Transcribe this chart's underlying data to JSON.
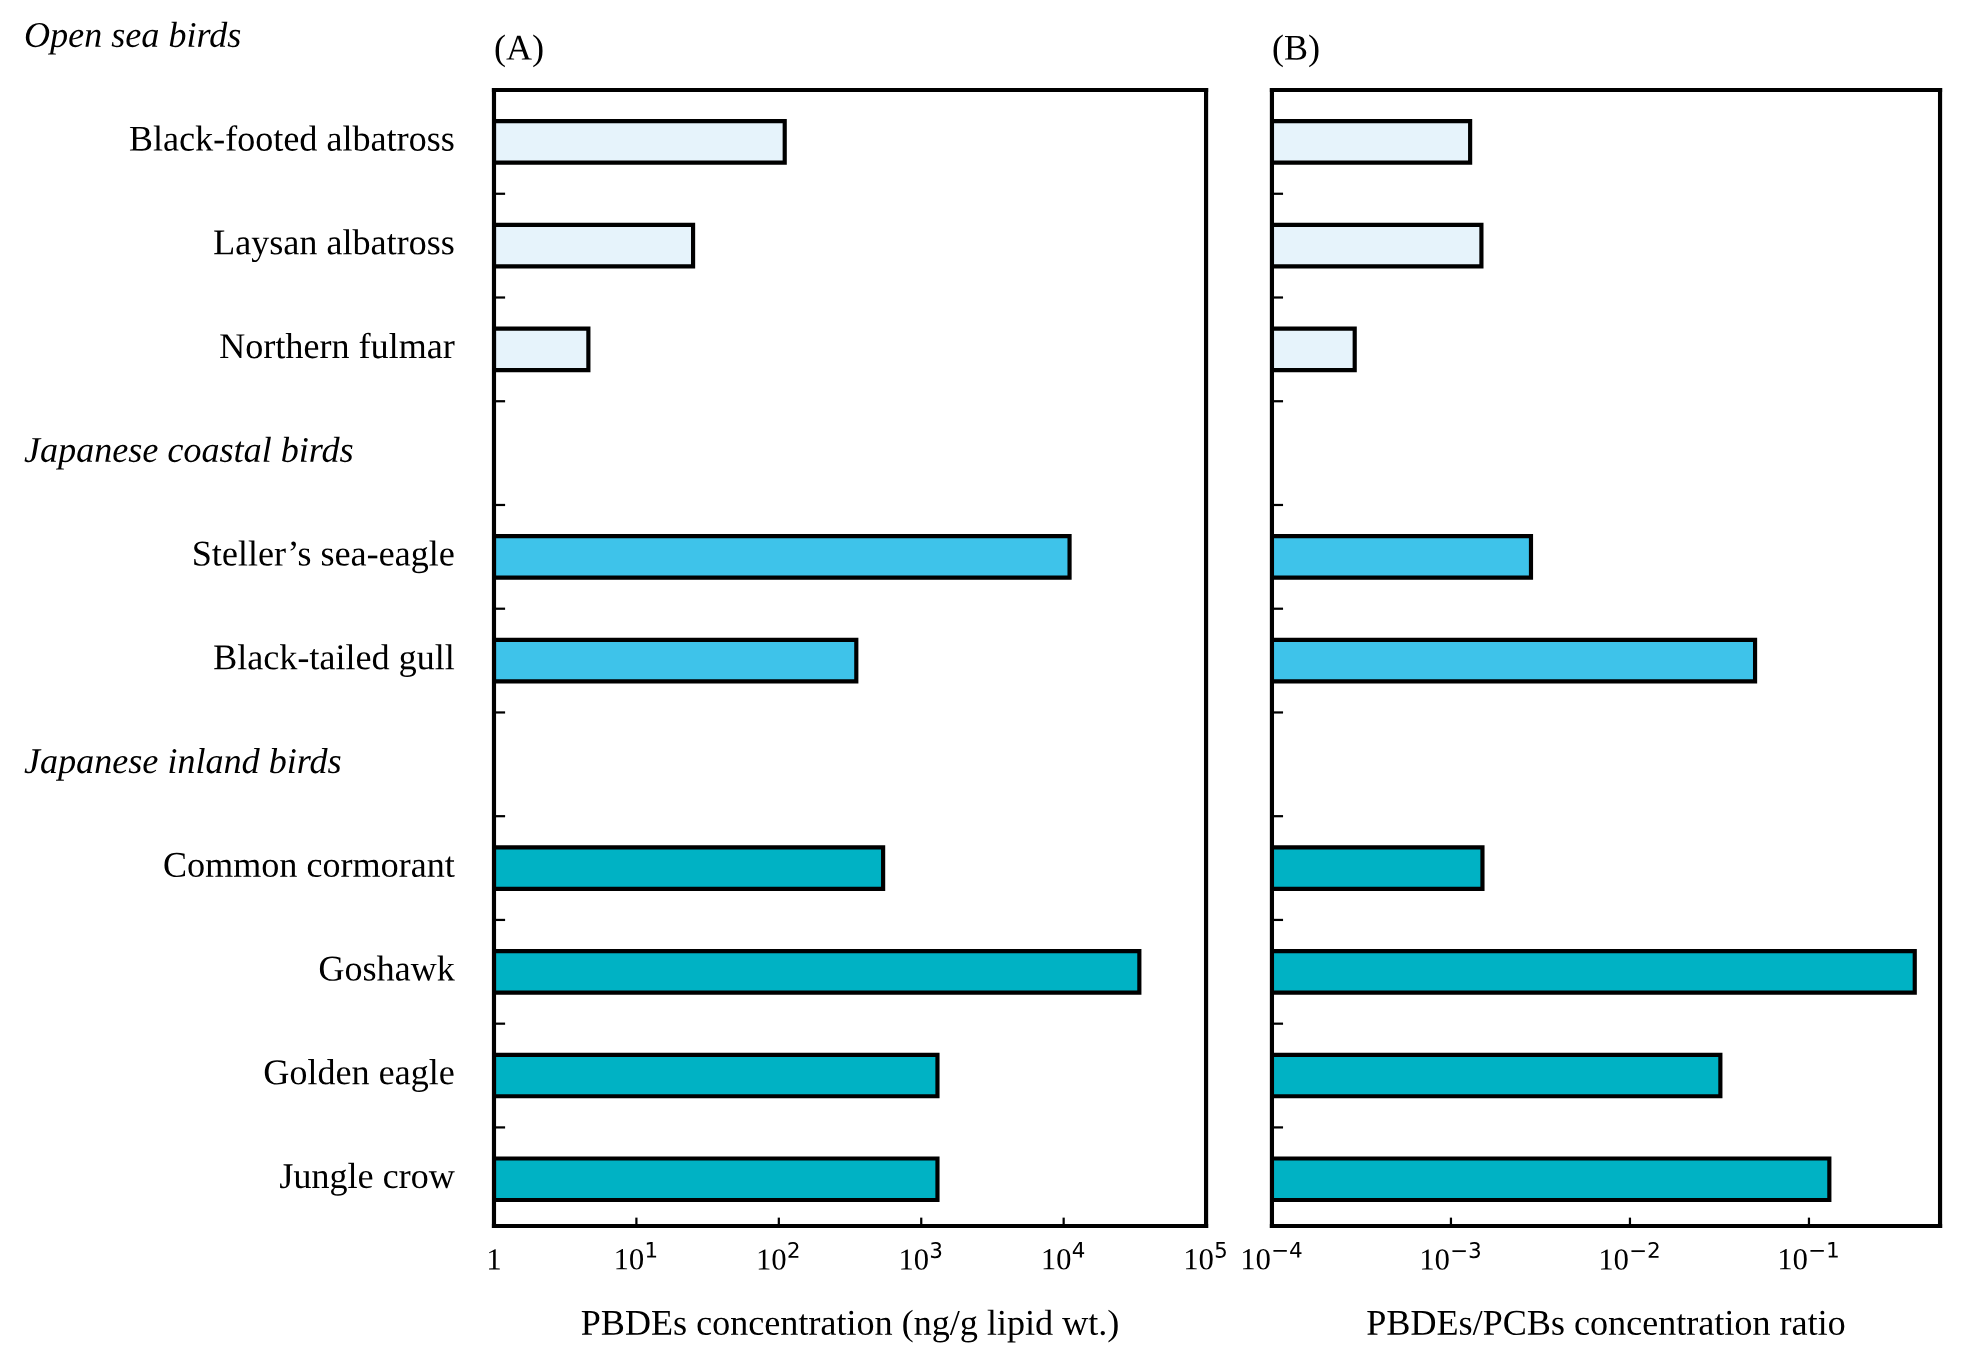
{
  "chart_data": [
    {
      "type": "bar",
      "orientation": "horizontal",
      "log": "x",
      "title": "(A)",
      "xlabel": "PBDEs concentration (ng/g lipid wt.)",
      "annotations": [
        "Open sea birds",
        "Japanese coastal birds",
        "Japanese inland birds"
      ],
      "categories": [
        null,
        "Black-footed albatross",
        "Laysan albatross",
        "Northern fulmar",
        null,
        "Steller’s sea-eagle",
        "Black-tailed gull",
        null,
        "Common cormorant",
        "Goshawk",
        "Golden eagle",
        "Jungle crow"
      ],
      "values": [
        null,
        110,
        25,
        4.6,
        null,
        11000,
        350,
        null,
        540,
        34000,
        1300,
        1300
      ],
      "colors": [
        null,
        "#e6f3fb",
        "#e6f3fb",
        "#e6f3fb",
        null,
        "#3ec3ea",
        "#3ec3ea",
        null,
        "#00b2c4",
        "#00b2c4",
        "#00b2c4",
        "#00b2c4"
      ],
      "xlim": [
        1,
        100000
      ],
      "xticks": [
        {
          "value": 1,
          "label": "1"
        },
        {
          "value": 10,
          "label": "10$^{1}$"
        },
        {
          "value": 100,
          "label": "10$^{2}$"
        },
        {
          "value": 1000,
          "label": "10$^{3}$"
        },
        {
          "value": 10000,
          "label": "10$^{4}$"
        },
        {
          "value": 100000,
          "label": "10$^{5}$"
        }
      ]
    },
    {
      "type": "bar",
      "orientation": "horizontal",
      "log": "x",
      "title": "(B)",
      "xlabel": "PBDEs/PCBs concentration ratio",
      "tick_labels": "x",
      "categories": [
        null,
        null,
        null,
        null,
        null,
        null,
        null,
        null,
        null,
        null,
        null,
        null
      ],
      "values": [
        null,
        0.00128,
        0.00148,
        0.00029,
        null,
        0.0028,
        0.05,
        null,
        0.0015,
        0.39,
        0.032,
        0.13
      ],
      "colors": [
        null,
        "#e6f3fb",
        "#e6f3fb",
        "#e6f3fb",
        null,
        "#3ec3ea",
        "#3ec3ea",
        null,
        "#00b2c4",
        "#00b2c4",
        "#00b2c4",
        "#00b2c4"
      ],
      "xlim": [
        0.0001,
        0.54
      ],
      "xticks": [
        {
          "value": 0.0001,
          "label": "10$^{−4}$"
        },
        {
          "value": 0.001,
          "label": "10$^{−3}$"
        },
        {
          "value": 0.01,
          "label": "10$^{−2}$"
        },
        {
          "value": 0.1,
          "label": "10$^{−1}$"
        }
      ]
    }
  ]
}
